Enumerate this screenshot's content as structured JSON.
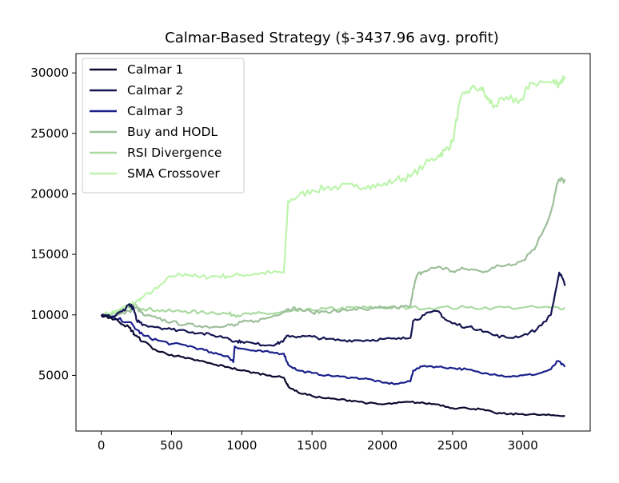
{
  "chart_data": {
    "type": "line",
    "title": "Calmar-Based Strategy ($-3437.96 avg. profit)",
    "xlabel": "",
    "ylabel": "",
    "xlim": [
      -180,
      3480
    ],
    "ylim": [
      400,
      31600
    ],
    "xticks": [
      0,
      500,
      1000,
      1500,
      2000,
      2500,
      3000
    ],
    "yticks": [
      5000,
      10000,
      15000,
      20000,
      25000,
      30000
    ],
    "grid": false,
    "legend_position": "top-left",
    "series": [
      {
        "name": "Calmar 1",
        "color": "#0a0a2e",
        "points": [
          [
            0,
            10000
          ],
          [
            60,
            9800
          ],
          [
            120,
            9500
          ],
          [
            180,
            9100
          ],
          [
            220,
            8700
          ],
          [
            240,
            8300
          ],
          [
            300,
            7800
          ],
          [
            400,
            7000
          ],
          [
            500,
            6700
          ],
          [
            600,
            6400
          ],
          [
            700,
            6200
          ],
          [
            800,
            5900
          ],
          [
            900,
            5700
          ],
          [
            1000,
            5400
          ],
          [
            1100,
            5200
          ],
          [
            1200,
            5000
          ],
          [
            1300,
            4800
          ],
          [
            1330,
            4100
          ],
          [
            1400,
            3600
          ],
          [
            1500,
            3300
          ],
          [
            1600,
            3100
          ],
          [
            1700,
            3000
          ],
          [
            1800,
            2900
          ],
          [
            1900,
            2700
          ],
          [
            2000,
            2600
          ],
          [
            2100,
            2700
          ],
          [
            2200,
            2800
          ],
          [
            2300,
            2700
          ],
          [
            2400,
            2600
          ],
          [
            2500,
            2300
          ],
          [
            2600,
            2300
          ],
          [
            2700,
            2200
          ],
          [
            2800,
            1900
          ],
          [
            2900,
            1800
          ],
          [
            3000,
            1800
          ],
          [
            3100,
            1750
          ],
          [
            3200,
            1700
          ],
          [
            3300,
            1650
          ]
        ]
      },
      {
        "name": "Calmar 2",
        "color": "#141452",
        "points": [
          [
            0,
            10000
          ],
          [
            80,
            9800
          ],
          [
            150,
            10300
          ],
          [
            200,
            10900
          ],
          [
            230,
            10500
          ],
          [
            250,
            9600
          ],
          [
            300,
            9200
          ],
          [
            400,
            9000
          ],
          [
            500,
            8800
          ],
          [
            600,
            8700
          ],
          [
            700,
            8500
          ],
          [
            800,
            8300
          ],
          [
            900,
            8100
          ],
          [
            950,
            7800
          ],
          [
            1000,
            7800
          ],
          [
            1100,
            7600
          ],
          [
            1200,
            7500
          ],
          [
            1250,
            7600
          ],
          [
            1300,
            7900
          ],
          [
            1330,
            8300
          ],
          [
            1400,
            8200
          ],
          [
            1500,
            8200
          ],
          [
            1600,
            8000
          ],
          [
            1700,
            7900
          ],
          [
            1800,
            7900
          ],
          [
            1900,
            7900
          ],
          [
            2000,
            8000
          ],
          [
            2100,
            8000
          ],
          [
            2200,
            8100
          ],
          [
            2220,
            9500
          ],
          [
            2300,
            10000
          ],
          [
            2400,
            10300
          ],
          [
            2450,
            9600
          ],
          [
            2500,
            9300
          ],
          [
            2600,
            9000
          ],
          [
            2700,
            8800
          ],
          [
            2800,
            8300
          ],
          [
            2900,
            8100
          ],
          [
            3000,
            8300
          ],
          [
            3100,
            8800
          ],
          [
            3200,
            10000
          ],
          [
            3260,
            13500
          ],
          [
            3300,
            12400
          ]
        ]
      },
      {
        "name": "Calmar 3",
        "color": "#1a1f8a",
        "points": [
          [
            0,
            10000
          ],
          [
            100,
            9700
          ],
          [
            200,
            9400
          ],
          [
            250,
            8800
          ],
          [
            300,
            8300
          ],
          [
            400,
            7900
          ],
          [
            500,
            7600
          ],
          [
            600,
            7500
          ],
          [
            700,
            7200
          ],
          [
            800,
            6800
          ],
          [
            900,
            6600
          ],
          [
            940,
            6100
          ],
          [
            950,
            7400
          ],
          [
            1000,
            7200
          ],
          [
            1100,
            7000
          ],
          [
            1200,
            6900
          ],
          [
            1300,
            6800
          ],
          [
            1330,
            5900
          ],
          [
            1400,
            5400
          ],
          [
            1500,
            5200
          ],
          [
            1600,
            5000
          ],
          [
            1700,
            4900
          ],
          [
            1800,
            4800
          ],
          [
            1900,
            4700
          ],
          [
            2000,
            4400
          ],
          [
            2100,
            4300
          ],
          [
            2200,
            4500
          ],
          [
            2220,
            5400
          ],
          [
            2300,
            5800
          ],
          [
            2400,
            5700
          ],
          [
            2500,
            5600
          ],
          [
            2600,
            5500
          ],
          [
            2700,
            5200
          ],
          [
            2800,
            5100
          ],
          [
            2900,
            4900
          ],
          [
            3000,
            5000
          ],
          [
            3100,
            5100
          ],
          [
            3200,
            5500
          ],
          [
            3250,
            6200
          ],
          [
            3300,
            5700
          ]
        ]
      },
      {
        "name": "Buy and HODL",
        "color": "#9dbf9a",
        "points": [
          [
            0,
            10000
          ],
          [
            100,
            9900
          ],
          [
            200,
            10300
          ],
          [
            250,
            10600
          ],
          [
            300,
            10000
          ],
          [
            400,
            9700
          ],
          [
            500,
            9400
          ],
          [
            600,
            9200
          ],
          [
            700,
            9100
          ],
          [
            800,
            9000
          ],
          [
            900,
            9200
          ],
          [
            950,
            9100
          ],
          [
            1000,
            9400
          ],
          [
            1100,
            9500
          ],
          [
            1200,
            9800
          ],
          [
            1300,
            10300
          ],
          [
            1330,
            10500
          ],
          [
            1400,
            10500
          ],
          [
            1500,
            10200
          ],
          [
            1600,
            10300
          ],
          [
            1700,
            10300
          ],
          [
            1800,
            10500
          ],
          [
            1900,
            10400
          ],
          [
            2000,
            10600
          ],
          [
            2100,
            10600
          ],
          [
            2200,
            10700
          ],
          [
            2220,
            12200
          ],
          [
            2250,
            13300
          ],
          [
            2300,
            13600
          ],
          [
            2400,
            14000
          ],
          [
            2500,
            13600
          ],
          [
            2600,
            13800
          ],
          [
            2700,
            13600
          ],
          [
            2800,
            13900
          ],
          [
            2900,
            14200
          ],
          [
            3000,
            14500
          ],
          [
            3100,
            15800
          ],
          [
            3200,
            18500
          ],
          [
            3250,
            21000
          ],
          [
            3300,
            21200
          ]
        ]
      },
      {
        "name": "RSI Divergence",
        "color": "#a9dba0",
        "points": [
          [
            0,
            10000
          ],
          [
            100,
            10100
          ],
          [
            200,
            10600
          ],
          [
            250,
            10800
          ],
          [
            300,
            10500
          ],
          [
            400,
            10400
          ],
          [
            500,
            10300
          ],
          [
            600,
            10300
          ],
          [
            700,
            10200
          ],
          [
            800,
            10200
          ],
          [
            900,
            10100
          ],
          [
            950,
            10000
          ],
          [
            1000,
            10000
          ],
          [
            1100,
            10100
          ],
          [
            1200,
            10100
          ],
          [
            1300,
            10200
          ],
          [
            1400,
            10300
          ],
          [
            1500,
            10400
          ],
          [
            1600,
            10500
          ],
          [
            1700,
            10500
          ],
          [
            1800,
            10600
          ],
          [
            1900,
            10600
          ],
          [
            2000,
            10600
          ],
          [
            2100,
            10600
          ],
          [
            2200,
            10600
          ],
          [
            2400,
            10600
          ],
          [
            2600,
            10600
          ],
          [
            2800,
            10600
          ],
          [
            3000,
            10600
          ],
          [
            3200,
            10600
          ],
          [
            3300,
            10600
          ]
        ]
      },
      {
        "name": "SMA Crossover",
        "color": "#bdf5ac",
        "points": [
          [
            0,
            10000
          ],
          [
            100,
            10300
          ],
          [
            200,
            10800
          ],
          [
            250,
            11100
          ],
          [
            300,
            11500
          ],
          [
            400,
            12200
          ],
          [
            500,
            13200
          ],
          [
            600,
            13400
          ],
          [
            700,
            13100
          ],
          [
            800,
            13200
          ],
          [
            900,
            13200
          ],
          [
            1000,
            13300
          ],
          [
            1100,
            13400
          ],
          [
            1200,
            13500
          ],
          [
            1300,
            13500
          ],
          [
            1330,
            19400
          ],
          [
            1400,
            19800
          ],
          [
            1500,
            20300
          ],
          [
            1600,
            20500
          ],
          [
            1700,
            20600
          ],
          [
            1800,
            20600
          ],
          [
            1900,
            20700
          ],
          [
            2000,
            20700
          ],
          [
            2100,
            21200
          ],
          [
            2200,
            21400
          ],
          [
            2300,
            22400
          ],
          [
            2400,
            23200
          ],
          [
            2450,
            23600
          ],
          [
            2500,
            24300
          ],
          [
            2550,
            27500
          ],
          [
            2600,
            28500
          ],
          [
            2700,
            28800
          ],
          [
            2750,
            27800
          ],
          [
            2800,
            27300
          ],
          [
            2900,
            27800
          ],
          [
            3000,
            27800
          ],
          [
            3050,
            29200
          ],
          [
            3200,
            29200
          ],
          [
            3260,
            29200
          ],
          [
            3300,
            29700
          ]
        ]
      }
    ]
  }
}
